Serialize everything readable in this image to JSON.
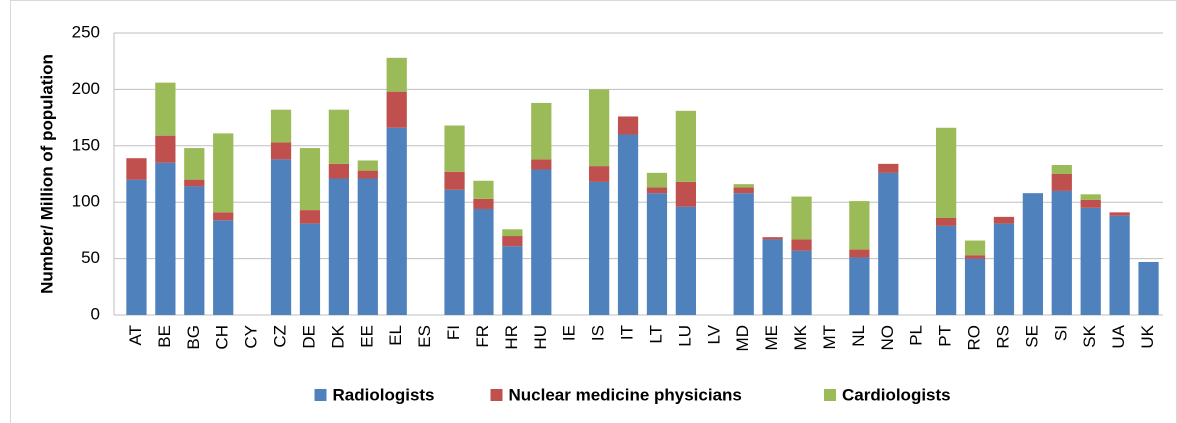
{
  "chart_data": {
    "type": "stacked_bar",
    "y_label": "Number/ Million of population",
    "categories": [
      "AT",
      "BE",
      "BG",
      "CH",
      "CY",
      "CZ",
      "DE",
      "DK",
      "EE",
      "EL",
      "ES",
      "FI",
      "FR",
      "HR",
      "HU",
      "IE",
      "IS",
      "IT",
      "LT",
      "LU",
      "LV",
      "MD",
      "ME",
      "MK",
      "MT",
      "NL",
      "NO",
      "PL",
      "PT",
      "RO",
      "RS",
      "SE",
      "SI",
      "SK",
      "UA",
      "UK"
    ],
    "series": [
      {
        "name": "Radiologists",
        "color": "#4f81bd",
        "values": [
          120,
          135,
          114,
          84,
          null,
          138,
          81,
          121,
          121,
          166,
          null,
          111,
          94,
          61,
          129,
          null,
          118,
          160,
          108,
          96,
          null,
          108,
          67,
          57,
          null,
          51,
          126,
          null,
          79,
          50,
          81,
          108,
          110,
          95,
          88,
          47
        ]
      },
      {
        "name": "Nuclear medicine physicians",
        "color": "#c0504d",
        "values": [
          19,
          24,
          6,
          7,
          null,
          15,
          12,
          13,
          7,
          32,
          null,
          16,
          9,
          9,
          9,
          null,
          14,
          16,
          5,
          22,
          null,
          5,
          2,
          10,
          null,
          7,
          8,
          null,
          7,
          3,
          6,
          0,
          15,
          7,
          3,
          0
        ]
      },
      {
        "name": "Cardiologists",
        "color": "#9bbb59",
        "values": [
          0,
          47,
          28,
          70,
          null,
          29,
          55,
          48,
          9,
          30,
          null,
          41,
          16,
          6,
          50,
          null,
          68,
          0,
          13,
          63,
          null,
          3,
          0,
          38,
          null,
          43,
          0,
          null,
          80,
          13,
          0,
          0,
          8,
          5,
          0,
          0
        ]
      }
    ],
    "ylim": [
      0,
      250
    ],
    "yticks": [
      0,
      50,
      100,
      150,
      200,
      250
    ],
    "grid": true,
    "legend": "bottom"
  }
}
